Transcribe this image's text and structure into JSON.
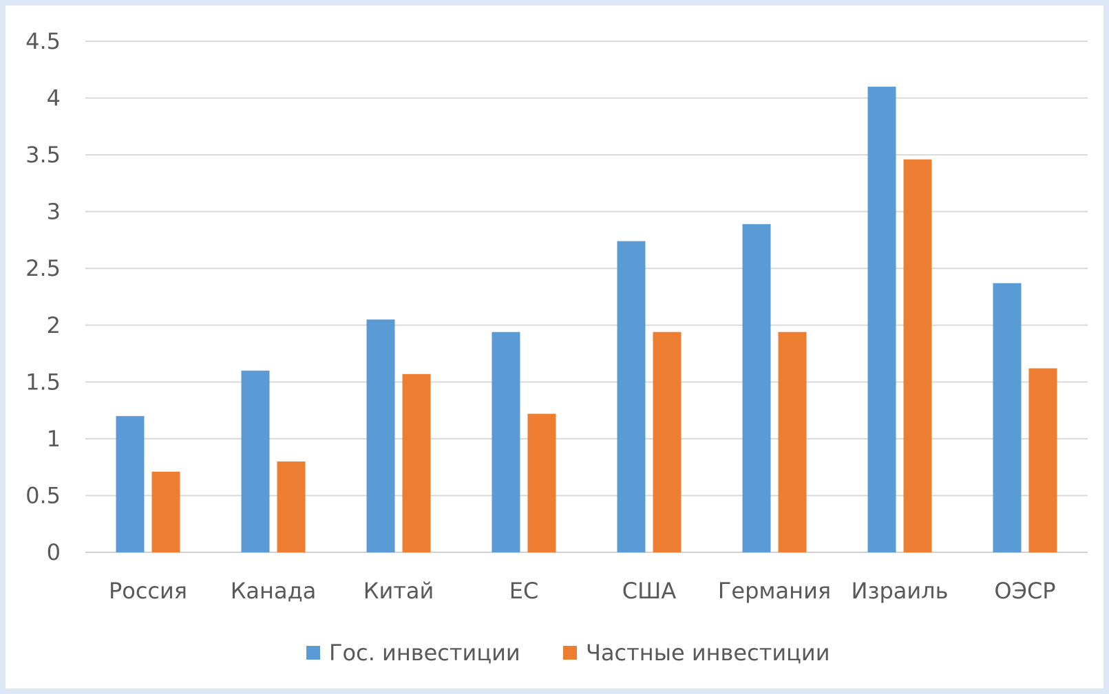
{
  "chart_data": {
    "type": "bar",
    "categories": [
      "Россия",
      "Канада",
      "Китай",
      "ЕС",
      "США",
      "Германия",
      "Израиль",
      "ОЭСР"
    ],
    "series": [
      {
        "name": "Гос. инвестиции",
        "color": "#5b9bd5",
        "values": [
          1.2,
          1.6,
          2.05,
          1.94,
          2.74,
          2.89,
          4.1,
          2.37
        ]
      },
      {
        "name": "Частные инвестиции",
        "color": "#ed7d31",
        "values": [
          0.71,
          0.8,
          1.57,
          1.22,
          1.94,
          1.94,
          3.46,
          1.62
        ]
      }
    ],
    "yticks": [
      "0",
      "0.5",
      "1",
      "1.5",
      "2",
      "2.5",
      "3",
      "3.5",
      "4",
      "4.5"
    ],
    "ylim": [
      0,
      4.5
    ],
    "grid": true,
    "legend": "bottom"
  }
}
